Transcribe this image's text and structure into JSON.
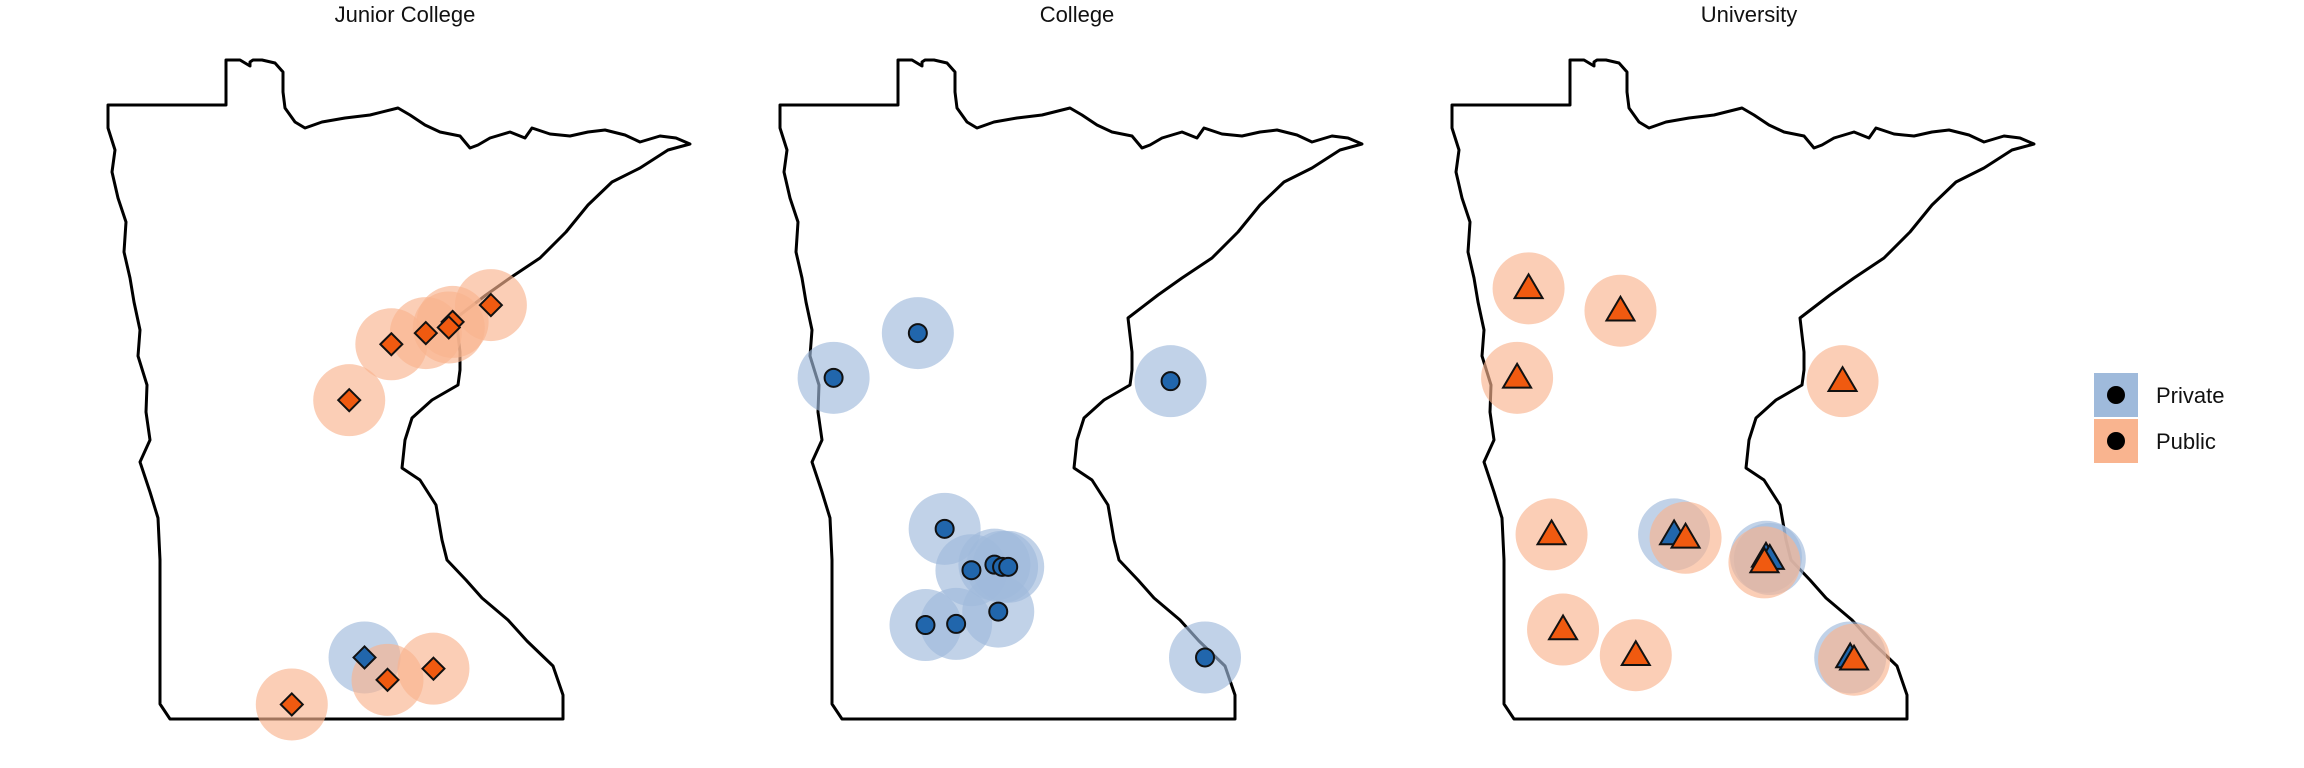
{
  "colors": {
    "private_fill": "#2166ac",
    "private_halo": "#9fbadb",
    "public_fill": "#f05a10",
    "public_halo": "#f9b48f",
    "outline": "#000000"
  },
  "legend": {
    "items": [
      {
        "key": "private",
        "label": "Private"
      },
      {
        "key": "public",
        "label": "Public"
      }
    ]
  },
  "chart_data": [
    {
      "type": "scatter",
      "title": "Junior College",
      "marker": "diamond",
      "xlabel": "",
      "ylabel": "",
      "points": [
        {
          "x": -92.2,
          "y": 47.2,
          "sector": "public"
        },
        {
          "x": -92.7,
          "y": 47.05,
          "sector": "public"
        },
        {
          "x": -92.75,
          "y": 47.0,
          "sector": "public"
        },
        {
          "x": -93.05,
          "y": 46.95,
          "sector": "public"
        },
        {
          "x": -93.5,
          "y": 46.85,
          "sector": "public"
        },
        {
          "x": -94.05,
          "y": 46.35,
          "sector": "public"
        },
        {
          "x": -93.85,
          "y": 44.05,
          "sector": "private"
        },
        {
          "x": -93.55,
          "y": 43.85,
          "sector": "public"
        },
        {
          "x": -92.95,
          "y": 43.95,
          "sector": "public"
        },
        {
          "x": -94.8,
          "y": 43.63,
          "sector": "public"
        }
      ]
    },
    {
      "type": "scatter",
      "title": "College",
      "marker": "circle",
      "xlabel": "",
      "ylabel": "",
      "points": [
        {
          "x": -95.4,
          "y": 46.95,
          "sector": "private"
        },
        {
          "x": -96.5,
          "y": 46.55,
          "sector": "private"
        },
        {
          "x": -92.1,
          "y": 46.52,
          "sector": "private"
        },
        {
          "x": -95.05,
          "y": 45.2,
          "sector": "private"
        },
        {
          "x": -94.7,
          "y": 44.83,
          "sector": "private"
        },
        {
          "x": -94.4,
          "y": 44.88,
          "sector": "private"
        },
        {
          "x": -94.3,
          "y": 44.86,
          "sector": "private"
        },
        {
          "x": -94.22,
          "y": 44.86,
          "sector": "private"
        },
        {
          "x": -94.35,
          "y": 44.46,
          "sector": "private"
        },
        {
          "x": -94.9,
          "y": 44.35,
          "sector": "private"
        },
        {
          "x": -95.3,
          "y": 44.34,
          "sector": "private"
        },
        {
          "x": -91.65,
          "y": 44.05,
          "sector": "private"
        }
      ]
    },
    {
      "type": "scatter",
      "title": "University",
      "marker": "triangle",
      "xlabel": "",
      "ylabel": "",
      "points": [
        {
          "x": -96.2,
          "y": 47.35,
          "sector": "public"
        },
        {
          "x": -95.0,
          "y": 47.15,
          "sector": "public"
        },
        {
          "x": -96.35,
          "y": 46.55,
          "sector": "public"
        },
        {
          "x": -92.1,
          "y": 46.52,
          "sector": "public"
        },
        {
          "x": -95.9,
          "y": 45.15,
          "sector": "public"
        },
        {
          "x": -94.3,
          "y": 45.15,
          "sector": "private"
        },
        {
          "x": -94.15,
          "y": 45.12,
          "sector": "public"
        },
        {
          "x": -93.1,
          "y": 44.95,
          "sector": "private"
        },
        {
          "x": -93.05,
          "y": 44.93,
          "sector": "private"
        },
        {
          "x": -93.12,
          "y": 44.9,
          "sector": "public"
        },
        {
          "x": -95.75,
          "y": 44.3,
          "sector": "public"
        },
        {
          "x": -94.8,
          "y": 44.07,
          "sector": "public"
        },
        {
          "x": -92.0,
          "y": 44.05,
          "sector": "private"
        },
        {
          "x": -91.95,
          "y": 44.03,
          "sector": "public"
        }
      ]
    }
  ]
}
